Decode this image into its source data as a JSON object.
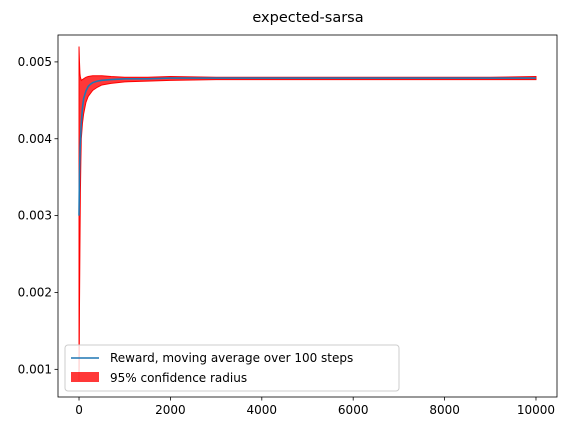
{
  "chart_data": {
    "type": "line",
    "title": "expected-sarsa",
    "xlabel": "",
    "ylabel": "",
    "xlim": [
      -460,
      10460
    ],
    "ylim": [
      0.00064,
      0.00535
    ],
    "x_ticks": [
      0,
      2000,
      4000,
      6000,
      8000,
      10000
    ],
    "x_tick_labels": [
      "0",
      "2000",
      "4000",
      "6000",
      "8000",
      "10000"
    ],
    "y_ticks": [
      0.001,
      0.002,
      0.003,
      0.004,
      0.005
    ],
    "y_tick_labels": [
      "0.001",
      "0.002",
      "0.003",
      "0.004",
      "0.005"
    ],
    "grid": false,
    "legend_position": "lower-left",
    "series": [
      {
        "name": "Reward, moving average over 100 steps",
        "color": "#1f77b4",
        "x": [
          0,
          10,
          25,
          50,
          75,
          100,
          150,
          200,
          250,
          300,
          400,
          500,
          700,
          1000,
          1500,
          2000,
          3000,
          4000,
          5000,
          6000,
          7000,
          8000,
          9000,
          10000
        ],
        "y": [
          0.003,
          0.00355,
          0.0039,
          0.0042,
          0.0044,
          0.00452,
          0.00462,
          0.00468,
          0.00471,
          0.00473,
          0.00475,
          0.00476,
          0.00477,
          0.00478,
          0.00478,
          0.00479,
          0.00479,
          0.00479,
          0.00479,
          0.00479,
          0.00479,
          0.00479,
          0.00479,
          0.00479
        ]
      }
    ],
    "band": {
      "name": "95% confidence radius",
      "color": "#ff0000",
      "opacity": 0.78,
      "x": [
        0,
        5,
        10,
        20,
        30,
        40,
        50,
        75,
        100,
        150,
        200,
        300,
        400,
        500,
        700,
        1000,
        1500,
        2000,
        3000,
        4000,
        5000,
        6000,
        7000,
        8000,
        9000,
        10000
      ],
      "upper": [
        0.0052,
        0.0051,
        0.005,
        0.00485,
        0.0048,
        0.00478,
        0.00476,
        0.00477,
        0.00478,
        0.0048,
        0.00481,
        0.00482,
        0.00482,
        0.00482,
        0.00481,
        0.0048,
        0.0048,
        0.00481,
        0.0048,
        0.0048,
        0.0048,
        0.0048,
        0.0048,
        0.0048,
        0.0048,
        0.00481
      ],
      "lower": [
        0.00085,
        0.0012,
        0.0018,
        0.0026,
        0.0033,
        0.0037,
        0.004,
        0.0042,
        0.00432,
        0.00447,
        0.00455,
        0.00463,
        0.00467,
        0.0047,
        0.00472,
        0.00474,
        0.00475,
        0.00476,
        0.00477,
        0.00477,
        0.00477,
        0.00477,
        0.00477,
        0.00477,
        0.00477,
        0.00477
      ]
    }
  }
}
